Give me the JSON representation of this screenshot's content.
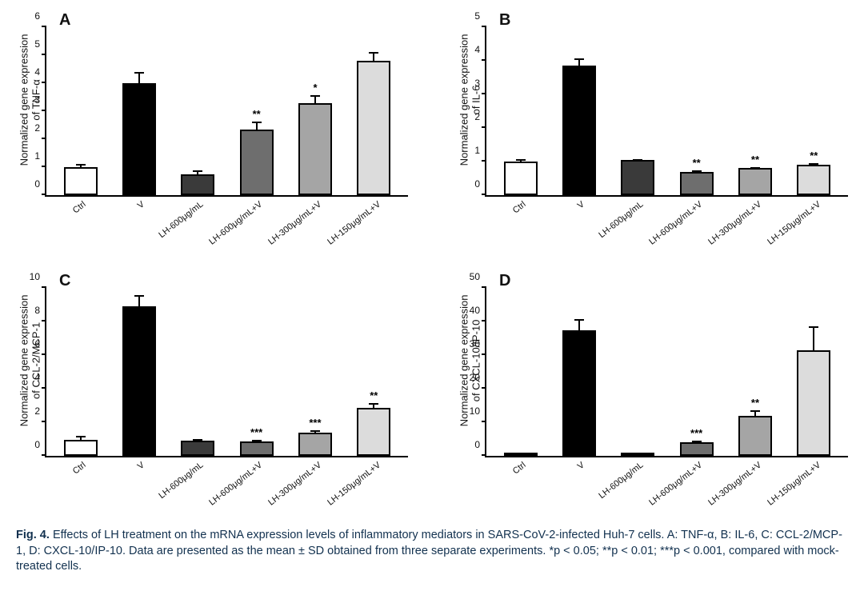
{
  "figure": {
    "caption_lead": "Fig. 4.",
    "caption_body": "Effects of LH treatment on the mRNA expression levels of inflammatory mediators in SARS-CoV-2-infected Huh-7 cells. A: TNF-α, B: IL-6, C: CCL-2/MCP-1, D: CXCL-10/IP-10. Data are presented as the mean ± SD obtained from three separate experiments. *p < 0.05; **p < 0.01; ***p < 0.001, compared with mock-treated cells.",
    "panel_labels": [
      "A",
      "B",
      "C",
      "D"
    ],
    "categories": [
      "Ctrl",
      "V",
      "LH-600μg/mL",
      "LH-600μg/mL+V",
      "LH-300μg/mL+V",
      "LH-150μg/mL+V"
    ],
    "bar_colors": [
      "#ffffff",
      "#000000",
      "#3a3a3a",
      "#6e6e6e",
      "#a5a5a5",
      "#dcdcdc"
    ],
    "axis_color": "#000000",
    "background_color": "#ffffff",
    "font_family": "Arial",
    "label_fontsize": 13,
    "tick_fontsize": 12,
    "xlabel_fontsize": 11,
    "xlabel_rotation_deg": -38,
    "bar_border_width": 2,
    "error_cap_width": 12,
    "panels": {
      "A": {
        "ylabel": "Normalized gene expression\nof TNF-α",
        "ylim": [
          0,
          6
        ],
        "yticks": [
          0,
          1,
          2,
          3,
          4,
          5,
          6
        ],
        "values": [
          1.0,
          4.0,
          0.75,
          2.35,
          3.3,
          4.8
        ],
        "errors": [
          0.18,
          0.5,
          0.22,
          0.35,
          0.35,
          0.4
        ],
        "sig": [
          "",
          "",
          "",
          "**",
          "*",
          ""
        ]
      },
      "B": {
        "ylabel": "Normalized gene expression\nof IL-6",
        "ylim": [
          0,
          5
        ],
        "yticks": [
          0,
          1,
          2,
          3,
          4,
          5
        ],
        "values": [
          1.0,
          3.85,
          1.05,
          0.7,
          0.8,
          0.9
        ],
        "errors": [
          0.12,
          0.28,
          0.08,
          0.1,
          0.1,
          0.12
        ],
        "sig": [
          "",
          "",
          "",
          "**",
          "**",
          "**"
        ]
      },
      "C": {
        "ylabel": "Normalized gene expression\nof CCL-2/MCP-1",
        "ylim": [
          0,
          10
        ],
        "yticks": [
          0,
          2,
          4,
          6,
          8,
          10
        ],
        "values": [
          0.95,
          8.9,
          0.9,
          0.85,
          1.4,
          2.85
        ],
        "errors": [
          0.35,
          0.8,
          0.2,
          0.2,
          0.25,
          0.4
        ],
        "sig": [
          "",
          "",
          "",
          "***",
          "***",
          "**"
        ]
      },
      "D": {
        "ylabel": "Normalized gene expression\nof CXCL-10/IP-10",
        "ylim": [
          0,
          50
        ],
        "yticks": [
          0,
          10,
          20,
          30,
          40,
          50
        ],
        "values": [
          0.8,
          37.5,
          0.6,
          4.0,
          12.0,
          31.5
        ],
        "errors": [
          0.6,
          4.0,
          0.5,
          1.2,
          2.2,
          8.0
        ],
        "sig": [
          "",
          "",
          "",
          "***",
          "**",
          ""
        ]
      }
    }
  }
}
